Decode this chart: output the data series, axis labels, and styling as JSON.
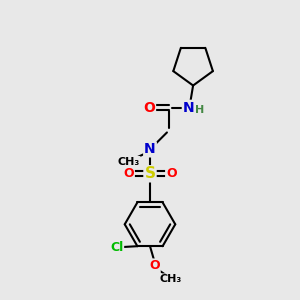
{
  "background_color": "#e8e8e8",
  "bond_color": "#000000",
  "bond_width": 1.5,
  "atom_colors": {
    "C": "#000000",
    "N": "#0000cc",
    "O": "#ff0000",
    "S": "#cccc00",
    "Cl": "#00bb00",
    "H": "#448844"
  },
  "figsize": [
    3.0,
    3.0
  ],
  "dpi": 100
}
